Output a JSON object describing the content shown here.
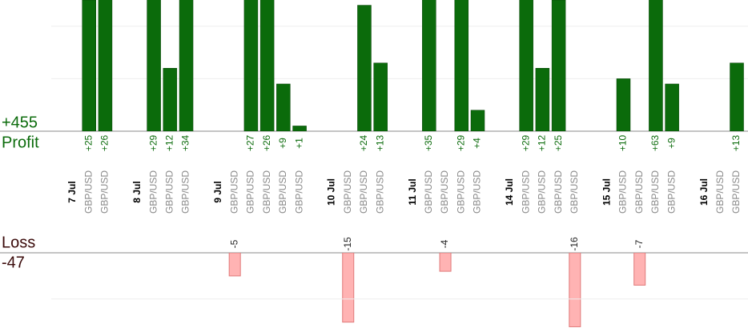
{
  "chart_data": {
    "type": "profit-loss",
    "profit_title": "Profit",
    "profit_total": {
      "value": 455,
      "label": "+455"
    },
    "loss_title": "Loss",
    "loss_total": -47,
    "profit_color": "#0b6b0b",
    "loss_color": "#ffb3b3",
    "profit_ylim": [
      0,
      25
    ],
    "profit_grid": [
      10,
      20
    ],
    "loss_ylim": [
      -18,
      0
    ],
    "loss_grid": [
      -10
    ],
    "groups": [
      {
        "date": "7 Jul",
        "trades": [
          {
            "symbol": "GBP/USD",
            "value": 25,
            "value_label": "+25"
          },
          {
            "symbol": "GBP/USD",
            "value": 26,
            "value_label": "+26"
          }
        ]
      },
      {
        "date": "8 Jul",
        "trades": [
          {
            "symbol": "GBP/USD",
            "value": 29,
            "value_label": "+29"
          },
          {
            "symbol": "GBP/USD",
            "value": 12,
            "value_label": "+12"
          },
          {
            "symbol": "GBP/USD",
            "value": 34,
            "value_label": "+34"
          }
        ]
      },
      {
        "date": "9 Jul",
        "trades": [
          {
            "symbol": "GBP/USD",
            "value": -5
          },
          {
            "symbol": "GBP/USD",
            "value": 27,
            "value_label": "+27"
          },
          {
            "symbol": "GBP/USD",
            "value": 26,
            "value_label": "+26"
          },
          {
            "symbol": "GBP/USD",
            "value": 9,
            "value_label": "+9"
          },
          {
            "symbol": "GBP/USD",
            "value": 1,
            "value_label": "+1"
          }
        ]
      },
      {
        "date": "10 Jul",
        "trades": [
          {
            "symbol": "GBP/USD",
            "value": -15
          },
          {
            "symbol": "GBP/USD",
            "value": 24,
            "value_label": "+24"
          },
          {
            "symbol": "GBP/USD",
            "value": 13,
            "value_label": "+13"
          }
        ]
      },
      {
        "date": "11 Jul",
        "trades": [
          {
            "symbol": "GBP/USD",
            "value": 35,
            "value_label": "+35"
          },
          {
            "symbol": "GBP/USD",
            "value": -4
          },
          {
            "symbol": "GBP/USD",
            "value": 29,
            "value_label": "+29"
          },
          {
            "symbol": "GBP/USD",
            "value": 4,
            "value_label": "+4"
          }
        ]
      },
      {
        "date": "14 Jul",
        "trades": [
          {
            "symbol": "GBP/USD",
            "value": 29,
            "value_label": "+29"
          },
          {
            "symbol": "GBP/USD",
            "value": 12,
            "value_label": "+12"
          },
          {
            "symbol": "GBP/USD",
            "value": 25,
            "value_label": "+25"
          },
          {
            "symbol": "GBP/USD",
            "value": -16
          }
        ]
      },
      {
        "date": "15 Jul",
        "trades": [
          {
            "symbol": "GBP/USD",
            "value": 10,
            "value_label": "+10"
          },
          {
            "symbol": "GBP/USD",
            "value": -7
          },
          {
            "symbol": "GBP/USD",
            "value": 63,
            "value_label": "+63"
          },
          {
            "symbol": "GBP/USD",
            "value": 9,
            "value_label": "+9"
          }
        ]
      },
      {
        "date": "16 Jul",
        "trades": [
          {
            "symbol": "GBP/USD",
            "value": null
          },
          {
            "symbol": "GBP/USD",
            "value": 13,
            "value_label": "+13"
          }
        ]
      }
    ]
  }
}
